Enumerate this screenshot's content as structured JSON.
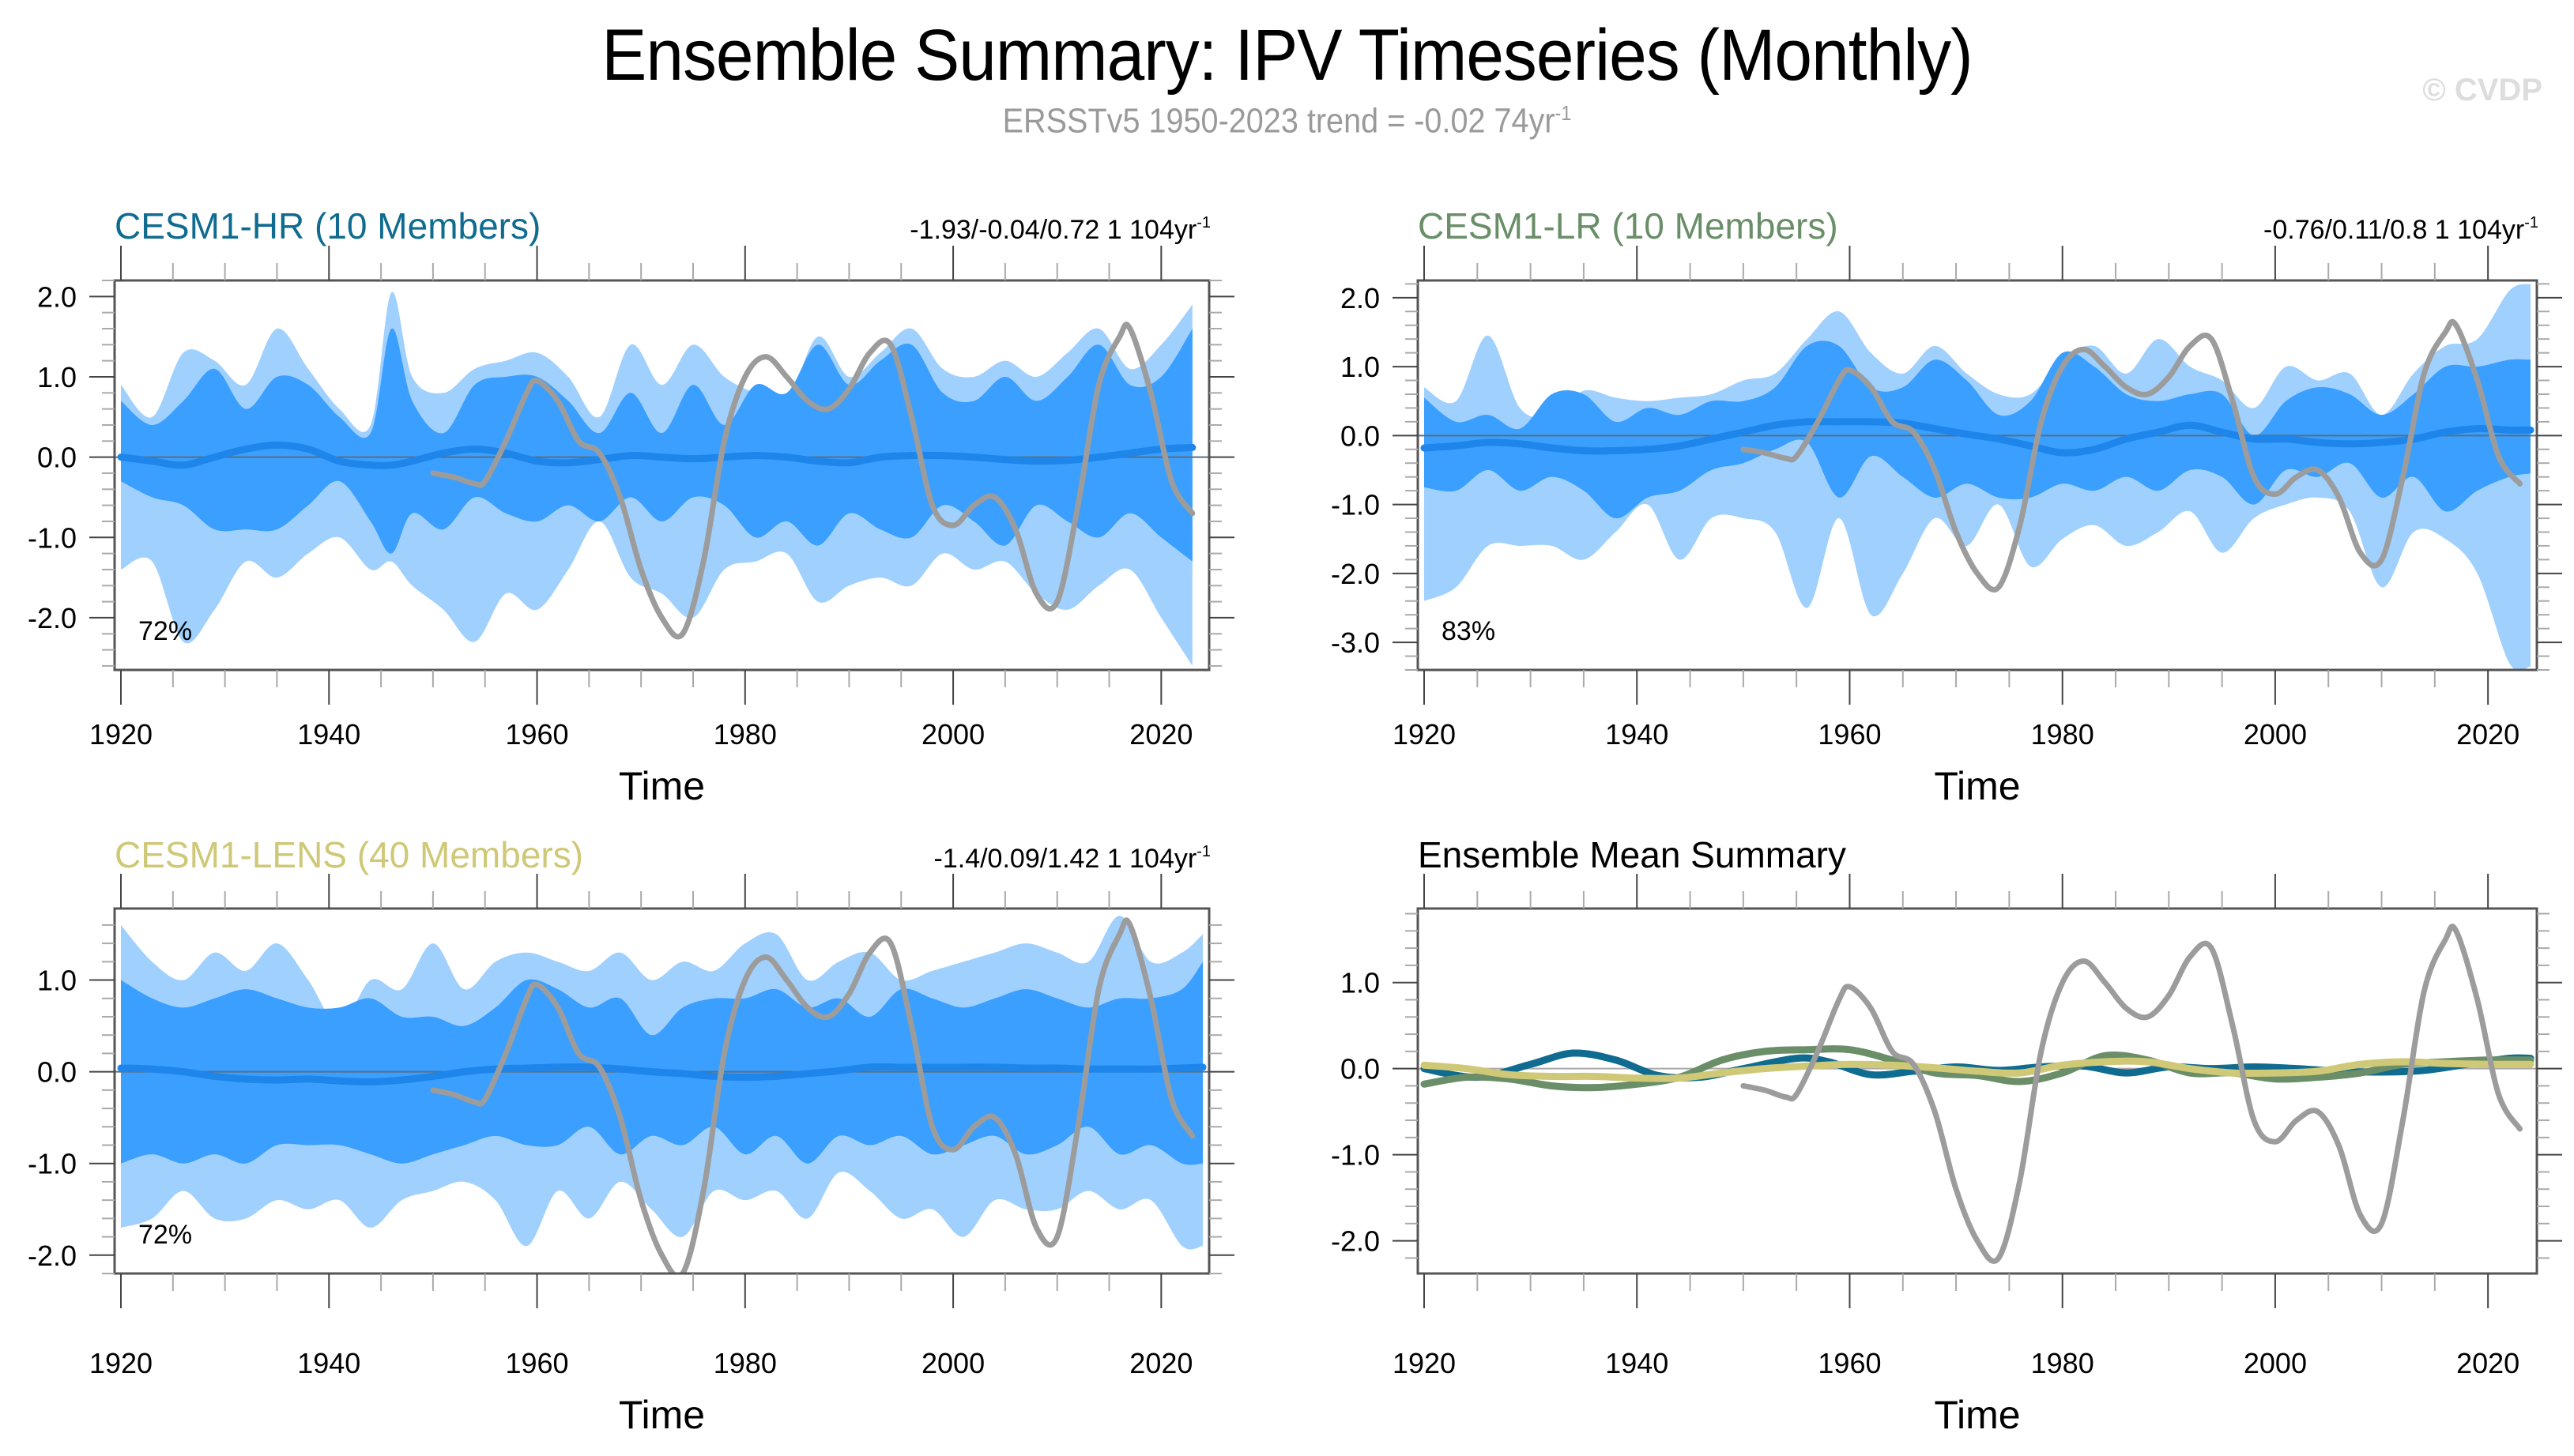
{
  "header": {
    "title": "Ensemble Summary: IPV Timeseries (Monthly)",
    "subtitle_main": "ERSSTv5 1950-2023 trend = -0.02 74yr",
    "subtitle_sup": "-1",
    "watermark": "© CVDP"
  },
  "colors": {
    "hr": "#0f6b8f",
    "lr": "#6a8e68",
    "lens": "#cfc877",
    "outer_band": "#a0d0fd",
    "inner_band": "#3a9ffe",
    "ens_mean": "#1e86ea",
    "obs": "#9c9c9c"
  },
  "chart_data": [
    {
      "id": "hr",
      "type": "area",
      "title": "CESM1-HR (10 Members)",
      "stats": "-1.93/-0.04/0.72 1 104yr",
      "stats_sup": "-1",
      "percent_label": "72%",
      "xlabel": "Time",
      "xlim": [
        1920,
        2024
      ],
      "xticks": [
        1920,
        1940,
        1960,
        1980,
        2000,
        2020
      ],
      "ylim": [
        -2.65,
        2.2
      ],
      "yticks": [
        2.0,
        1.0,
        0.0,
        -1.0,
        -2.0
      ],
      "ytick_labels": [
        "2.0",
        "1.0",
        "0.0",
        "-1.0",
        "-2.0"
      ],
      "years": [
        1920,
        1923,
        1926,
        1929,
        1932,
        1935,
        1938,
        1941,
        1944,
        1946,
        1948,
        1951,
        1954,
        1957,
        1960,
        1963,
        1966,
        1969,
        1972,
        1975,
        1978,
        1981,
        1984,
        1987,
        1990,
        1993,
        1996,
        1999,
        2002,
        2005,
        2008,
        2011,
        2014,
        2017,
        2020,
        2023
      ],
      "outer_upper": [
        0.9,
        0.5,
        1.3,
        1.2,
        0.9,
        1.6,
        1.1,
        0.6,
        0.4,
        2.05,
        1.0,
        0.8,
        1.1,
        1.2,
        1.3,
        1.0,
        0.5,
        1.4,
        0.9,
        1.4,
        1.0,
        0.8,
        0.7,
        1.5,
        1.0,
        1.3,
        1.6,
        1.1,
        1.0,
        1.2,
        1.0,
        1.3,
        1.6,
        1.1,
        1.4,
        1.9
      ],
      "inner_upper": [
        0.7,
        0.4,
        0.7,
        1.1,
        0.6,
        1.0,
        0.9,
        0.5,
        0.3,
        1.6,
        0.7,
        0.3,
        0.9,
        1.0,
        1.0,
        0.7,
        0.3,
        0.8,
        0.3,
        0.9,
        0.4,
        0.9,
        0.8,
        1.4,
        0.9,
        1.2,
        1.4,
        0.8,
        0.7,
        1.0,
        0.7,
        1.0,
        1.4,
        0.9,
        1.0,
        1.6
      ],
      "inner_lower": [
        -0.3,
        -0.5,
        -0.6,
        -0.9,
        -0.9,
        -0.9,
        -0.6,
        -0.3,
        -0.8,
        -1.2,
        -0.7,
        -0.9,
        -0.5,
        -0.7,
        -0.8,
        -0.6,
        -0.8,
        -0.5,
        -0.8,
        -0.5,
        -0.6,
        -1.0,
        -0.8,
        -1.1,
        -0.7,
        -0.9,
        -1.0,
        -0.6,
        -0.8,
        -1.1,
        -0.6,
        -0.8,
        -1.0,
        -0.7,
        -1.0,
        -1.3
      ],
      "outer_lower": [
        -1.4,
        -1.3,
        -2.3,
        -1.9,
        -1.3,
        -1.5,
        -1.2,
        -1.0,
        -1.4,
        -1.3,
        -1.6,
        -1.9,
        -2.3,
        -1.7,
        -1.9,
        -1.4,
        -0.8,
        -1.5,
        -1.7,
        -2.0,
        -1.4,
        -1.3,
        -1.2,
        -1.8,
        -1.6,
        -1.5,
        -1.6,
        -1.2,
        -1.4,
        -1.3,
        -1.7,
        -1.9,
        -1.6,
        -1.4,
        -2.0,
        -2.6
      ],
      "ens_mean": [
        0.0,
        -0.05,
        -0.1,
        0.0,
        0.1,
        0.15,
        0.1,
        -0.05,
        -0.1,
        -0.1,
        -0.05,
        0.05,
        0.1,
        0.05,
        -0.05,
        -0.07,
        -0.03,
        0.02,
        0.0,
        -0.02,
        0.0,
        0.02,
        0.0,
        -0.05,
        -0.07,
        0.0,
        0.02,
        0.02,
        0.0,
        -0.03,
        -0.05,
        -0.04,
        0.0,
        0.05,
        0.1,
        0.12
      ]
    },
    {
      "id": "lr",
      "type": "area",
      "title": "CESM1-LR (10 Members)",
      "stats": "-0.76/0.11/0.8 1 104yr",
      "stats_sup": "-1",
      "percent_label": "83%",
      "xlabel": "Time",
      "xlim": [
        1920,
        2024
      ],
      "xticks": [
        1920,
        1940,
        1960,
        1980,
        2000,
        2020
      ],
      "ylim": [
        -3.4,
        2.25
      ],
      "yticks": [
        2.0,
        1.0,
        0.0,
        -1.0,
        -2.0,
        -3.0
      ],
      "ytick_labels": [
        "2.0",
        "1.0",
        "0.0",
        "-1.0",
        "-2.0",
        "-3.0"
      ],
      "years": [
        1920,
        1923,
        1926,
        1929,
        1932,
        1935,
        1938,
        1941,
        1944,
        1947,
        1950,
        1953,
        1956,
        1959,
        1962,
        1965,
        1968,
        1971,
        1974,
        1977,
        1980,
        1983,
        1986,
        1989,
        1992,
        1995,
        1998,
        2001,
        2004,
        2007,
        2010,
        2013,
        2016,
        2019,
        2022,
        2024
      ],
      "outer_upper": [
        0.7,
        0.5,
        1.45,
        0.4,
        0.3,
        0.65,
        0.55,
        0.5,
        0.55,
        0.6,
        0.8,
        0.9,
        1.4,
        1.8,
        1.2,
        0.9,
        1.3,
        0.9,
        0.6,
        0.6,
        1.1,
        1.3,
        0.9,
        1.4,
        1.0,
        0.8,
        0.4,
        1.0,
        0.8,
        0.9,
        0.3,
        0.9,
        1.3,
        1.4,
        2.1,
        2.2
      ],
      "inner_upper": [
        0.55,
        0.2,
        0.3,
        0.1,
        0.6,
        0.6,
        0.2,
        0.4,
        0.3,
        0.5,
        0.5,
        0.7,
        1.3,
        1.3,
        0.7,
        0.7,
        1.1,
        0.8,
        0.3,
        0.5,
        1.2,
        1.0,
        0.6,
        0.5,
        0.6,
        0.6,
        0.0,
        0.5,
        0.7,
        0.6,
        0.3,
        0.6,
        1.0,
        1.0,
        1.1,
        1.1
      ],
      "inner_lower": [
        -0.75,
        -0.8,
        -0.5,
        -0.8,
        -0.6,
        -0.8,
        -1.2,
        -0.9,
        -0.8,
        -0.5,
        -0.4,
        -0.2,
        -0.1,
        -0.9,
        -0.3,
        -0.6,
        -0.9,
        -0.7,
        -0.9,
        -0.9,
        -0.7,
        -0.8,
        -0.6,
        -0.8,
        -0.5,
        -0.6,
        -1.0,
        -0.5,
        -0.6,
        -0.4,
        -0.9,
        -0.6,
        -1.1,
        -0.8,
        -0.6,
        -0.55
      ],
      "outer_lower": [
        -2.4,
        -2.2,
        -1.6,
        -1.6,
        -1.6,
        -1.8,
        -1.4,
        -1.0,
        -1.8,
        -1.2,
        -1.2,
        -1.4,
        -2.5,
        -1.2,
        -2.6,
        -2.0,
        -1.2,
        -1.6,
        -1.0,
        -1.9,
        -1.5,
        -1.3,
        -1.6,
        -1.4,
        -1.1,
        -1.7,
        -1.2,
        -1.0,
        -0.9,
        -1.1,
        -2.2,
        -1.4,
        -1.5,
        -2.0,
        -3.3,
        -3.35
      ],
      "ens_mean": [
        -0.18,
        -0.15,
        -0.1,
        -0.12,
        -0.18,
        -0.22,
        -0.22,
        -0.2,
        -0.15,
        -0.05,
        0.05,
        0.15,
        0.2,
        0.2,
        0.2,
        0.18,
        0.1,
        0.02,
        -0.05,
        -0.15,
        -0.25,
        -0.2,
        -0.05,
        0.05,
        0.15,
        0.05,
        -0.05,
        -0.05,
        -0.1,
        -0.12,
        -0.1,
        -0.05,
        0.05,
        0.1,
        0.08,
        0.08
      ]
    },
    {
      "id": "lens",
      "type": "area",
      "title": "CESM1-LENS (40 Members)",
      "stats": "-1.4/0.09/1.42 1 104yr",
      "stats_sup": "-1",
      "percent_label": "72%",
      "xlabel": "Time",
      "xlim": [
        1920,
        2024
      ],
      "xticks": [
        1920,
        1940,
        1960,
        1980,
        2000,
        2020
      ],
      "ylim": [
        -2.2,
        1.78
      ],
      "yticks": [
        1.0,
        0.0,
        -1.0,
        -2.0
      ],
      "ytick_labels": [
        "1.0",
        "0.0",
        "-1.0",
        "-2.0"
      ],
      "years": [
        1920,
        1923,
        1926,
        1929,
        1932,
        1935,
        1938,
        1941,
        1944,
        1947,
        1950,
        1953,
        1956,
        1959,
        1962,
        1965,
        1968,
        1971,
        1974,
        1977,
        1980,
        1983,
        1986,
        1989,
        1992,
        1995,
        1998,
        2001,
        2004,
        2007,
        2010,
        2013,
        2016,
        2019,
        2022,
        2024
      ],
      "outer_upper": [
        1.6,
        1.2,
        1.0,
        1.3,
        1.1,
        1.4,
        1.0,
        0.5,
        1.0,
        0.9,
        1.4,
        0.9,
        1.2,
        1.3,
        1.2,
        1.1,
        1.3,
        1.0,
        1.2,
        1.1,
        1.4,
        1.5,
        1.0,
        1.2,
        1.3,
        1.0,
        1.1,
        1.2,
        1.3,
        1.4,
        1.3,
        1.2,
        1.7,
        1.2,
        1.3,
        1.5
      ],
      "inner_upper": [
        1.0,
        0.8,
        0.7,
        0.8,
        0.9,
        0.8,
        0.7,
        0.7,
        0.8,
        0.6,
        0.6,
        0.5,
        0.7,
        1.0,
        0.9,
        0.7,
        0.8,
        0.4,
        0.7,
        0.8,
        0.8,
        0.9,
        0.7,
        0.8,
        0.6,
        0.9,
        0.8,
        0.7,
        0.8,
        0.9,
        0.8,
        0.7,
        0.8,
        0.8,
        0.9,
        1.2
      ],
      "inner_lower": [
        -1.0,
        -0.9,
        -1.0,
        -0.9,
        -1.0,
        -0.8,
        -0.8,
        -0.8,
        -0.9,
        -1.0,
        -0.9,
        -0.8,
        -0.7,
        -0.8,
        -0.8,
        -0.6,
        -0.9,
        -0.7,
        -0.8,
        -0.6,
        -0.9,
        -0.7,
        -1.0,
        -0.7,
        -0.8,
        -0.7,
        -0.9,
        -0.8,
        -0.7,
        -0.9,
        -0.8,
        -0.6,
        -0.9,
        -0.8,
        -1.0,
        -1.0
      ],
      "outer_lower": [
        -1.7,
        -1.6,
        -1.3,
        -1.6,
        -1.6,
        -1.4,
        -1.5,
        -1.4,
        -1.7,
        -1.4,
        -1.3,
        -1.2,
        -1.4,
        -1.9,
        -1.3,
        -1.6,
        -1.2,
        -1.5,
        -1.8,
        -1.3,
        -1.4,
        -1.3,
        -1.6,
        -1.1,
        -1.3,
        -1.6,
        -1.5,
        -1.8,
        -1.4,
        -1.5,
        -1.5,
        -1.3,
        -1.5,
        -1.4,
        -1.9,
        -1.9
      ],
      "ens_mean": [
        0.04,
        0.03,
        0.0,
        -0.05,
        -0.08,
        -0.09,
        -0.08,
        -0.1,
        -0.11,
        -0.09,
        -0.05,
        0.0,
        0.03,
        0.04,
        0.05,
        0.05,
        0.03,
        0.0,
        -0.02,
        -0.05,
        -0.06,
        -0.05,
        -0.02,
        0.01,
        0.05,
        0.05,
        0.05,
        0.05,
        0.05,
        0.04,
        0.04,
        0.03,
        0.03,
        0.03,
        0.04,
        0.05
      ]
    },
    {
      "id": "summary",
      "type": "line",
      "title": "Ensemble Mean Summary",
      "xlabel": "Time",
      "xlim": [
        1920,
        2024
      ],
      "xticks": [
        1920,
        1940,
        1960,
        1980,
        2000,
        2020
      ],
      "ylim": [
        -2.38,
        1.86
      ],
      "yticks": [
        1.0,
        0.0,
        -1.0,
        -2.0
      ],
      "ytick_labels": [
        "1.0",
        "0.0",
        "-1.0",
        "-2.0"
      ],
      "series": [
        {
          "name": "CESM1-HR",
          "color_key": "hr",
          "years": [
            1920,
            1925,
            1930,
            1934,
            1938,
            1942,
            1946,
            1950,
            1955,
            1958,
            1962,
            1966,
            1970,
            1974,
            1978,
            1982,
            1986,
            1990,
            1994,
            1998,
            2002,
            2006,
            2010,
            2014,
            2018,
            2022,
            2024
          ],
          "values": [
            0.0,
            -0.1,
            0.05,
            0.18,
            0.1,
            -0.08,
            -0.1,
            0.0,
            0.12,
            0.08,
            -0.07,
            -0.03,
            0.02,
            -0.02,
            0.02,
            0.03,
            -0.05,
            0.02,
            0.0,
            0.02,
            0.0,
            -0.03,
            -0.04,
            -0.02,
            0.05,
            0.12,
            0.12
          ]
        },
        {
          "name": "CESM1-LR",
          "color_key": "lr",
          "years": [
            1920,
            1924,
            1928,
            1932,
            1936,
            1940,
            1944,
            1948,
            1952,
            1956,
            1960,
            1964,
            1968,
            1972,
            1976,
            1980,
            1984,
            1988,
            1992,
            1996,
            2000,
            2004,
            2008,
            2012,
            2016,
            2020,
            2024
          ],
          "values": [
            -0.18,
            -0.1,
            -0.12,
            -0.2,
            -0.22,
            -0.18,
            -0.1,
            0.1,
            0.2,
            0.22,
            0.22,
            0.1,
            -0.05,
            -0.08,
            -0.15,
            -0.05,
            0.15,
            0.1,
            -0.05,
            -0.05,
            -0.12,
            -0.1,
            -0.05,
            0.05,
            0.08,
            0.1,
            0.1
          ]
        },
        {
          "name": "CESM1-LENS",
          "color_key": "lens",
          "years": [
            1920,
            1924,
            1928,
            1932,
            1936,
            1940,
            1944,
            1948,
            1952,
            1956,
            1960,
            1964,
            1968,
            1972,
            1976,
            1980,
            1984,
            1988,
            1992,
            1996,
            2000,
            2004,
            2008,
            2012,
            2016,
            2020,
            2024
          ],
          "values": [
            0.04,
            0.0,
            -0.07,
            -0.09,
            -0.09,
            -0.11,
            -0.11,
            -0.05,
            0.0,
            0.03,
            0.05,
            0.04,
            0.01,
            -0.03,
            -0.05,
            0.04,
            0.08,
            0.08,
            0.0,
            -0.05,
            -0.05,
            -0.03,
            0.05,
            0.08,
            0.06,
            0.05,
            0.05
          ]
        }
      ]
    }
  ],
  "observations": {
    "name": "ERSSTv5",
    "years": [
      1950,
      1952,
      1954,
      1955,
      1957,
      1959,
      1960,
      1962,
      1964,
      1966,
      1968,
      1970,
      1972,
      1974,
      1976,
      1978,
      1980,
      1982,
      1984,
      1986,
      1988,
      1990,
      1992,
      1994,
      1996,
      1998,
      2000,
      2002,
      2004,
      2006,
      2008,
      2010,
      2012,
      2014,
      2016,
      2017,
      2019,
      2021,
      2023
    ],
    "values": [
      -0.2,
      -0.25,
      -0.33,
      -0.3,
      0.2,
      0.8,
      0.95,
      0.7,
      0.2,
      0.05,
      -0.5,
      -1.4,
      -2.0,
      -2.2,
      -1.3,
      0.2,
      1.0,
      1.25,
      1.0,
      0.7,
      0.6,
      0.85,
      1.3,
      1.4,
      0.5,
      -0.6,
      -0.85,
      -0.6,
      -0.5,
      -0.9,
      -1.7,
      -1.8,
      -0.6,
      0.9,
      1.5,
      1.6,
      0.8,
      -0.3,
      -0.7
    ]
  }
}
